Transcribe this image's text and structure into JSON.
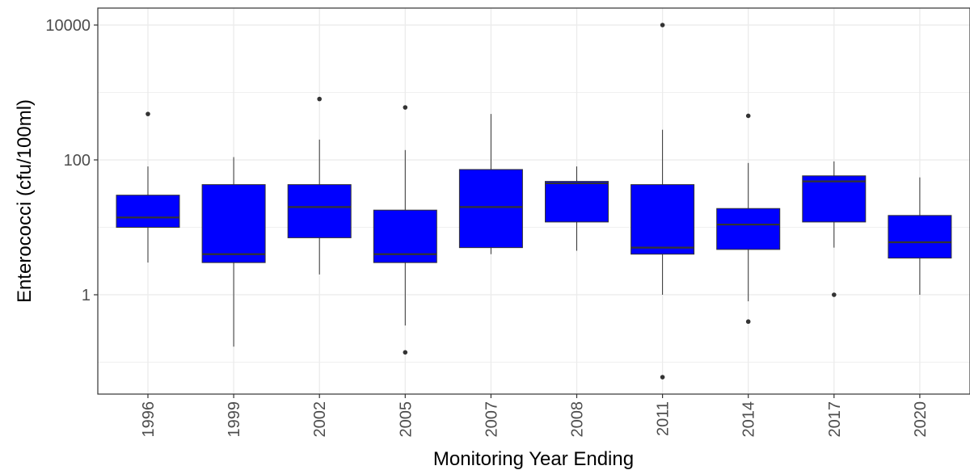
{
  "chart_data": {
    "type": "boxplot",
    "title": "",
    "xlabel": "Monitoring Year Ending",
    "ylabel": "Enterococci (cfu/100ml)",
    "y_scale": "log10",
    "ylim": [
      0.03,
      15000
    ],
    "y_ticks": [
      1,
      100,
      10000
    ],
    "y_tick_labels": [
      "1",
      "100",
      "10000"
    ],
    "grid": true,
    "legend": "none",
    "box_color": "#0000ff",
    "categories": [
      "1996",
      "1999",
      "2002",
      "2005",
      "2007",
      "2008",
      "2011",
      "2014",
      "2017",
      "2020"
    ],
    "boxes": [
      {
        "category": "1996",
        "whisker_low": 3,
        "q1": 10,
        "median": 14,
        "q3": 30,
        "whisker_high": 80,
        "outliers": [
          480
        ]
      },
      {
        "category": "1999",
        "whisker_low": 0.17,
        "q1": 3,
        "median": 4,
        "q3": 43,
        "whisker_high": 110,
        "outliers": []
      },
      {
        "category": "2002",
        "whisker_low": 2,
        "q1": 7,
        "median": 20,
        "q3": 43,
        "whisker_high": 200,
        "outliers": [
          800
        ]
      },
      {
        "category": "2005",
        "whisker_low": 0.35,
        "q1": 3,
        "median": 4,
        "q3": 18,
        "whisker_high": 140,
        "outliers": [
          0.14,
          600
        ]
      },
      {
        "category": "2007",
        "whisker_low": 4,
        "q1": 5,
        "median": 20,
        "q3": 72,
        "whisker_high": 480,
        "outliers": []
      },
      {
        "category": "2008",
        "whisker_low": 4.5,
        "q1": 12,
        "median": 45,
        "q3": 48,
        "whisker_high": 80,
        "outliers": []
      },
      {
        "category": "2011",
        "whisker_low": 1,
        "q1": 4,
        "median": 5,
        "q3": 43,
        "whisker_high": 280,
        "outliers": [
          0.06,
          10000
        ]
      },
      {
        "category": "2014",
        "whisker_low": 0.8,
        "q1": 4.7,
        "median": 11,
        "q3": 19,
        "whisker_high": 90,
        "outliers": [
          0.4,
          450
        ]
      },
      {
        "category": "2017",
        "whisker_low": 5,
        "q1": 12,
        "median": 48,
        "q3": 58,
        "whisker_high": 95,
        "outliers": [
          1
        ]
      },
      {
        "category": "2020",
        "whisker_low": 1,
        "q1": 3.5,
        "median": 6,
        "q3": 15,
        "whisker_high": 55,
        "outliers": []
      }
    ]
  }
}
